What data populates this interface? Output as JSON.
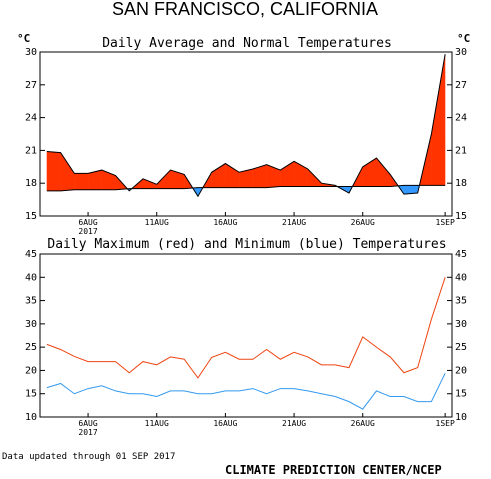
{
  "header": {
    "title": "SAN FRANCISCO, CALIFORNIA",
    "unit_left": "°C",
    "unit_right": "°C"
  },
  "footer": {
    "updated": "Data updated through 01 SEP 2017",
    "credit": "CLIMATE PREDICTION CENTER/NCEP"
  },
  "colors": {
    "above_normal_fill": "#ff3300",
    "below_normal_fill": "#3399ff",
    "max_line": "#ee4411",
    "min_line": "#3399ee",
    "axis": "#000000"
  },
  "chart_data": [
    {
      "type": "area",
      "title": "Daily Average and Normal Temperatures",
      "ylabel": "°C",
      "ylim": [
        15,
        30
      ],
      "yticks": [
        15,
        18,
        21,
        24,
        27,
        30
      ],
      "x": [
        "3AUG",
        "4AUG",
        "5AUG",
        "6AUG",
        "7AUG",
        "8AUG",
        "9AUG",
        "10AUG",
        "11AUG",
        "12AUG",
        "13AUG",
        "14AUG",
        "15AUG",
        "16AUG",
        "17AUG",
        "18AUG",
        "19AUG",
        "20AUG",
        "21AUG",
        "22AUG",
        "23AUG",
        "24AUG",
        "25AUG",
        "26AUG",
        "27AUG",
        "28AUG",
        "29AUG",
        "30AUG",
        "31AUG",
        "1SEP"
      ],
      "xtick_labels": [
        {
          "label": "6AUG",
          "index": 3,
          "sub": "2017"
        },
        {
          "label": "11AUG",
          "index": 8
        },
        {
          "label": "16AUG",
          "index": 13
        },
        {
          "label": "21AUG",
          "index": 18
        },
        {
          "label": "26AUG",
          "index": 23
        },
        {
          "label": "1SEP",
          "index": 29
        }
      ],
      "series": [
        {
          "name": "Daily Average",
          "values": [
            20.9,
            20.8,
            18.9,
            18.9,
            19.2,
            18.7,
            17.3,
            18.4,
            17.9,
            19.2,
            18.8,
            16.8,
            19.0,
            19.8,
            19.0,
            19.3,
            19.7,
            19.2,
            20.0,
            19.3,
            18.0,
            17.8,
            17.1,
            19.5,
            20.3,
            18.8,
            17.0,
            17.1,
            22.5,
            29.8
          ]
        },
        {
          "name": "Normal",
          "values": [
            17.3,
            17.3,
            17.4,
            17.4,
            17.4,
            17.4,
            17.5,
            17.5,
            17.5,
            17.5,
            17.5,
            17.6,
            17.6,
            17.6,
            17.6,
            17.6,
            17.6,
            17.7,
            17.7,
            17.7,
            17.7,
            17.7,
            17.7,
            17.7,
            17.7,
            17.7,
            17.8,
            17.8,
            17.8,
            17.8
          ]
        }
      ]
    },
    {
      "type": "line",
      "title": "Daily Maximum (red) and Minimum (blue) Temperatures",
      "ylabel": "°C",
      "ylim": [
        10,
        45
      ],
      "yticks": [
        10,
        15,
        20,
        25,
        30,
        35,
        40,
        45
      ],
      "x": [
        "3AUG",
        "4AUG",
        "5AUG",
        "6AUG",
        "7AUG",
        "8AUG",
        "9AUG",
        "10AUG",
        "11AUG",
        "12AUG",
        "13AUG",
        "14AUG",
        "15AUG",
        "16AUG",
        "17AUG",
        "18AUG",
        "19AUG",
        "20AUG",
        "21AUG",
        "22AUG",
        "23AUG",
        "24AUG",
        "25AUG",
        "26AUG",
        "27AUG",
        "28AUG",
        "29AUG",
        "30AUG",
        "31AUG",
        "1SEP"
      ],
      "xtick_labels": [
        {
          "label": "6AUG",
          "index": 3,
          "sub": "2017"
        },
        {
          "label": "11AUG",
          "index": 8
        },
        {
          "label": "16AUG",
          "index": 13
        },
        {
          "label": "21AUG",
          "index": 18
        },
        {
          "label": "26AUG",
          "index": 23
        },
        {
          "label": "1SEP",
          "index": 29
        }
      ],
      "series": [
        {
          "name": "Maximum",
          "values": [
            25.6,
            24.5,
            23.0,
            21.9,
            21.9,
            21.9,
            19.5,
            21.9,
            21.2,
            22.9,
            22.4,
            18.4,
            22.8,
            23.9,
            22.4,
            22.4,
            24.5,
            22.4,
            23.9,
            22.9,
            21.2,
            21.2,
            20.6,
            27.2,
            25.0,
            22.9,
            19.5,
            20.6,
            31.0,
            40.0
          ]
        },
        {
          "name": "Minimum",
          "values": [
            16.3,
            17.2,
            15.0,
            16.1,
            16.7,
            15.6,
            15.0,
            15.0,
            14.4,
            15.6,
            15.6,
            15.0,
            15.0,
            15.6,
            15.6,
            16.1,
            15.0,
            16.1,
            16.1,
            15.6,
            15.0,
            14.4,
            13.3,
            11.7,
            15.6,
            14.4,
            14.4,
            13.3,
            13.3,
            19.4
          ]
        }
      ]
    }
  ]
}
